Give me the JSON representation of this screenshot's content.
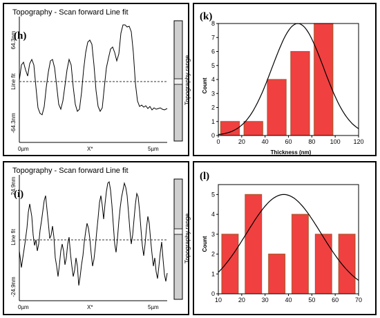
{
  "profiles": [
    {
      "panel_label": "(h)",
      "title": "Topography - Scan forward   Line fit",
      "y_top_label": "64.3nm",
      "y_bottom_label": "-64.3nm",
      "y_axis_label": "Line fit",
      "x_left_label": "0µm",
      "x_mid_label": "X*",
      "x_right_label": "5µm",
      "scale_label": "Topography range"
    },
    {
      "panel_label": "(i)",
      "title": "Topography - Scan forward   Line fit",
      "y_top_label": "24.9nm",
      "y_bottom_label": "-24.9nm",
      "y_axis_label": "Line fit",
      "x_left_label": "0µm",
      "x_mid_label": "X*",
      "x_right_label": "5µm",
      "scale_label": "Topography range"
    }
  ],
  "histograms": [
    {
      "panel_label": "(k)",
      "xlabel": "Thickness (nm)",
      "ylabel": "Count"
    },
    {
      "panel_label": "(l)",
      "xlabel": "Thickness (nm)",
      "ylabel": "Count"
    }
  ],
  "chart_data": [
    {
      "type": "bar",
      "title": "",
      "xlabel": "Thickness (nm)",
      "ylabel": "Count",
      "x_ticks": [
        0,
        20,
        40,
        60,
        80,
        100,
        120
      ],
      "y_ticks": [
        0,
        1,
        2,
        3,
        4,
        5,
        6,
        7,
        8
      ],
      "xlim": [
        0,
        120
      ],
      "ylim": [
        0,
        8
      ],
      "bar_width": 16,
      "x": [
        10,
        30,
        50,
        70,
        90
      ],
      "values": [
        1,
        1,
        4,
        6,
        8
      ],
      "fit": {
        "type": "gaussian",
        "amplitude": 8.0,
        "mean": 68,
        "sigma": 22
      },
      "bar_color": "#f04040",
      "bar_border_color": "#a35a20"
    },
    {
      "type": "bar",
      "title": "",
      "xlabel": "Thickness (nm)",
      "ylabel": "Count",
      "x_ticks": [
        10,
        20,
        30,
        40,
        50,
        60,
        70
      ],
      "y_ticks": [
        0,
        1,
        2,
        3,
        4,
        5
      ],
      "xlim": [
        10,
        70
      ],
      "ylim": [
        0,
        5.5
      ],
      "bar_width": 7,
      "x": [
        15,
        25,
        35,
        45,
        55,
        65
      ],
      "values": [
        3,
        5,
        2,
        4,
        3,
        3
      ],
      "fit": {
        "type": "gaussian",
        "amplitude": 5.0,
        "mean": 38,
        "sigma": 16
      },
      "bar_color": "#f04040",
      "bar_border_color": "#a35a20"
    }
  ]
}
